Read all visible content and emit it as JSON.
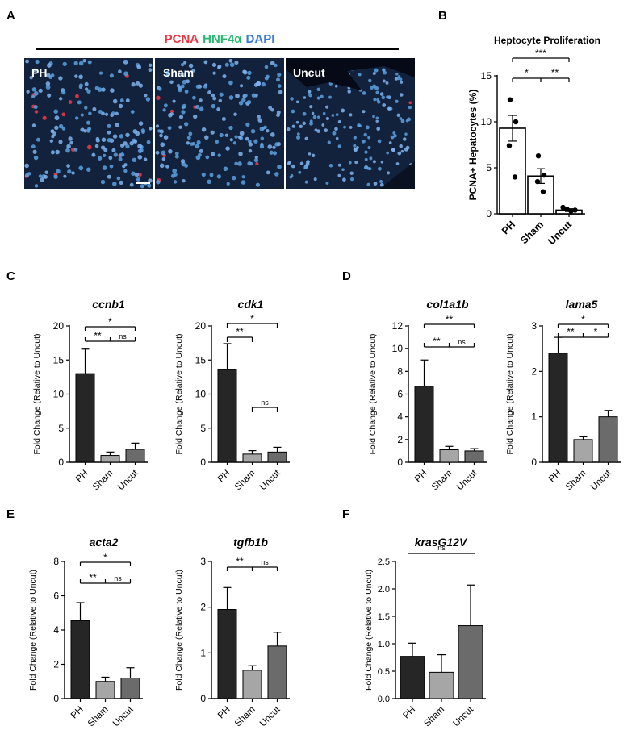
{
  "colors": {
    "pcna": "#e63946",
    "hnf4a": "#2bb673",
    "dapi": "#3a7bd5",
    "bar_ph": "#262626",
    "bar_sham": "#a6a6a6",
    "bar_uncut": "#6b6b6b",
    "micro_bg": "#12223d"
  },
  "panel_letters": [
    "A",
    "B",
    "C",
    "D",
    "E",
    "F"
  ],
  "panel_a": {
    "stain_title": [
      "PCNA",
      "HNF4α",
      "DAPI"
    ],
    "images": [
      {
        "label": "PH"
      },
      {
        "label": "Sham"
      },
      {
        "label": "Uncut"
      }
    ]
  },
  "chart_data": [
    {
      "id": "b",
      "type": "bar",
      "title": "Heptocyte Proliferation",
      "categories": [
        "PH",
        "Sham",
        "Uncut"
      ],
      "values": [
        9.3,
        4.1,
        0.4
      ],
      "errors": [
        1.4,
        0.8,
        0.15
      ],
      "points": [
        [
          12.4,
          10.0,
          7.4,
          4.0
        ],
        [
          6.3,
          4.2,
          3.5,
          2.4
        ],
        [
          0.7,
          0.5,
          0.3,
          0.4
        ]
      ],
      "ylabel": "PCNA+ Hepatocytes (%)",
      "ylim": [
        0,
        15
      ],
      "yticks": [
        "0",
        "5",
        "10",
        "15"
      ],
      "sig": [
        {
          "mode": "top",
          "label": "***"
        },
        {
          "mode": "fork",
          "left": "*",
          "right": "**"
        }
      ]
    },
    {
      "id": "ccnb1",
      "type": "bar",
      "title": "ccnb1",
      "categories": [
        "PH",
        "Sham",
        "Uncut"
      ],
      "values": [
        13.0,
        1.0,
        1.9
      ],
      "errors": [
        3.6,
        0.5,
        0.9
      ],
      "ylabel": "Fold Change (Relative to Uncut)",
      "ylim": [
        0,
        20
      ],
      "yticks": [
        "0",
        "5",
        "10",
        "15",
        "20"
      ],
      "sig": [
        {
          "mode": "top",
          "label": "*"
        },
        {
          "mode": "fork",
          "left": "**",
          "right": "ns"
        }
      ]
    },
    {
      "id": "cdk1",
      "type": "bar",
      "title": "cdk1",
      "categories": [
        "PH",
        "Sham",
        "Uncut"
      ],
      "values": [
        13.6,
        1.2,
        1.5
      ],
      "errors": [
        3.8,
        0.5,
        0.7
      ],
      "ylabel": "Fold Change (Relative to Uncut)",
      "ylim": [
        0,
        20
      ],
      "yticks": [
        "0",
        "5",
        "10",
        "15",
        "20"
      ],
      "sig": [
        {
          "mode": "top",
          "label": "*"
        },
        {
          "mode": "pair",
          "from": 0,
          "to": 1,
          "label": "**"
        },
        {
          "mode": "pair",
          "from": 1,
          "to": 2,
          "label": "ns"
        }
      ]
    },
    {
      "id": "col1a1b",
      "type": "bar",
      "title": "col1a1b",
      "categories": [
        "PH",
        "Sham",
        "Uncut"
      ],
      "values": [
        6.7,
        1.1,
        1.0
      ],
      "errors": [
        2.3,
        0.3,
        0.2
      ],
      "ylabel": "Fold Change (Relative to Uncut)",
      "ylim": [
        0,
        12
      ],
      "yticks": [
        "0",
        "2",
        "4",
        "6",
        "8",
        "10",
        "12"
      ],
      "sig": [
        {
          "mode": "top",
          "label": "**"
        },
        {
          "mode": "fork",
          "left": "**",
          "right": "ns"
        }
      ]
    },
    {
      "id": "lama5",
      "type": "bar",
      "title": "lama5",
      "categories": [
        "PH",
        "Sham",
        "Uncut"
      ],
      "values": [
        2.4,
        0.5,
        1.0
      ],
      "errors": [
        0.35,
        0.06,
        0.14
      ],
      "ylabel": "Fold Change (Relative to Uncut)",
      "ylim": [
        0,
        3
      ],
      "yticks": [
        "0",
        "1",
        "2",
        "3"
      ],
      "sig": [
        {
          "mode": "top",
          "label": "*"
        },
        {
          "mode": "fork",
          "left": "**",
          "right": "*"
        }
      ]
    },
    {
      "id": "acta2",
      "type": "bar",
      "title": "acta2",
      "categories": [
        "PH",
        "Sham",
        "Uncut"
      ],
      "values": [
        4.55,
        1.0,
        1.2
      ],
      "errors": [
        1.05,
        0.25,
        0.6
      ],
      "ylabel": "Fold Change (Relative to Uncut)",
      "ylim": [
        0,
        8
      ],
      "yticks": [
        "0",
        "2",
        "4",
        "6",
        "8"
      ],
      "sig": [
        {
          "mode": "top",
          "label": "*"
        },
        {
          "mode": "fork",
          "left": "**",
          "right": "ns"
        }
      ]
    },
    {
      "id": "tgfb1b",
      "type": "bar",
      "title": "tgfb1b",
      "categories": [
        "PH",
        "Sham",
        "Uncut"
      ],
      "values": [
        1.95,
        0.62,
        1.15
      ],
      "errors": [
        0.48,
        0.1,
        0.3
      ],
      "ylabel": "Fold Change (Relative to Uncut)",
      "ylim": [
        0,
        3
      ],
      "yticks": [
        "0",
        "1",
        "2",
        "3"
      ],
      "sig": [
        {
          "mode": "fork",
          "left": "**",
          "right": "ns"
        }
      ]
    },
    {
      "id": "krasG12V",
      "type": "bar",
      "title": "krasG12V",
      "categories": [
        "PH",
        "Sham",
        "Uncut"
      ],
      "values": [
        0.77,
        0.48,
        1.33
      ],
      "errors": [
        0.24,
        0.32,
        0.74
      ],
      "ylabel": "Fold Change (Relative to Uncut)",
      "ylim": [
        0,
        2.5
      ],
      "yticks": [
        "0.0",
        "0.5",
        "1.0",
        "1.5",
        "2.0",
        "2.5"
      ],
      "sig": [
        {
          "mode": "line",
          "label": "ns"
        }
      ]
    }
  ]
}
